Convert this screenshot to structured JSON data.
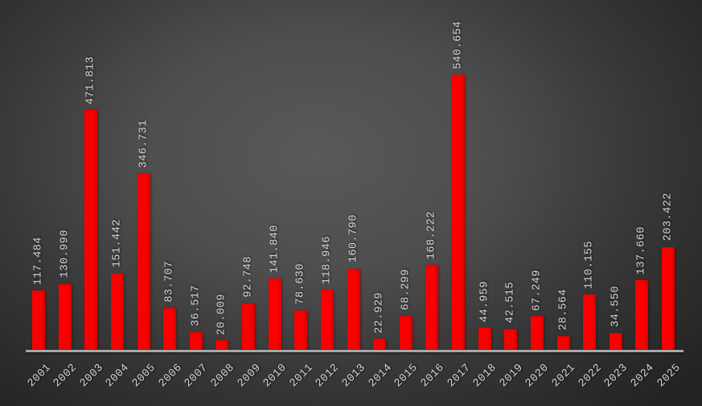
{
  "chart_data": {
    "type": "bar",
    "title": "",
    "xlabel": "",
    "ylabel": "",
    "categories": [
      "2001",
      "2002",
      "2003",
      "2004",
      "2005",
      "2006",
      "2007",
      "2008",
      "2009",
      "2010",
      "2011",
      "2012",
      "2013",
      "2014",
      "2015",
      "2016",
      "2017",
      "2018",
      "2019",
      "2020",
      "2021",
      "2022",
      "2023",
      "2024",
      "2025"
    ],
    "values": [
      117484,
      130990,
      471813,
      151442,
      346731,
      83707,
      36517,
      20009,
      92748,
      141840,
      78630,
      118946,
      160790,
      22929,
      68299,
      168222,
      540654,
      44959,
      42515,
      67249,
      28564,
      110155,
      34550,
      137660,
      203422
    ],
    "value_labels": [
      "117.484",
      "130.990",
      "471.813",
      "151.442",
      "346.731",
      "83.707",
      "36.517",
      "20.009",
      "92.748",
      "141.840",
      "78.630",
      "118.946",
      "160.790",
      "22.929",
      "68.299",
      "168.222",
      "540.654",
      "44.959",
      "42.515",
      "67.249",
      "28.564",
      "110.155",
      "34.550",
      "137.660",
      "203.422"
    ],
    "ylim": [
      0,
      540654
    ],
    "grid": false,
    "legend": false,
    "colors": {
      "bar": "#fa0000",
      "label": "#d6d6d6",
      "axis": "#a8a8a8",
      "background_center": "#595959",
      "background_edge": "#232323"
    }
  }
}
